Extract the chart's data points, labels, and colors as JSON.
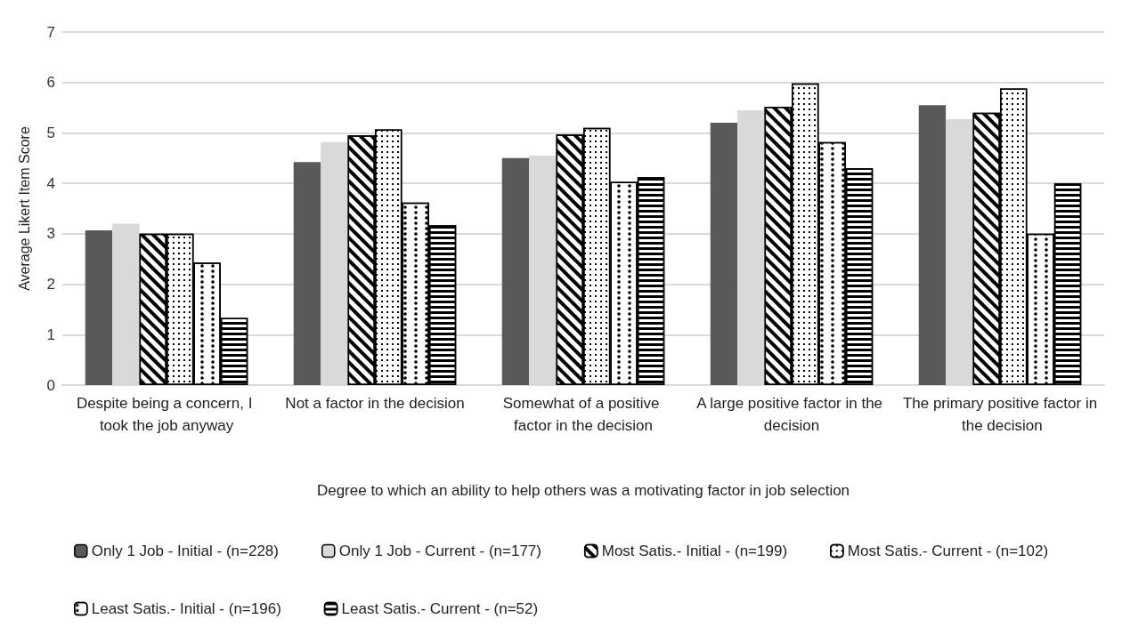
{
  "chart_data": {
    "type": "bar",
    "xlabel": "Degree to which an ability to help others was a motivating factor in job selection",
    "ylabel": "Average Likert Item Score",
    "categories": [
      "Despite being a concern, I took the job anyway",
      "Not a factor in the decision",
      "Somewhat of a positive factor in the decision",
      "A large positive factor in the decision",
      "The primary positive factor in the decision"
    ],
    "series": [
      {
        "name": "Only 1 Job - Initial - (n=228)",
        "color": "#595959",
        "values": [
          3.07,
          4.42,
          4.5,
          5.2,
          5.55
        ]
      },
      {
        "name": "Only 1 Job - Current - (n=177)",
        "color": "#d9d9d9",
        "values": [
          3.2,
          4.82,
          4.55,
          5.45,
          5.27
        ]
      },
      {
        "name": "Most Satis.- Initial - (n=199)",
        "color": "#ffffff",
        "values": [
          3.0,
          4.95,
          4.97,
          5.52,
          5.4
        ]
      },
      {
        "name": "Most Satis.- Current - (n=102)",
        "color": "#ffffff",
        "values": [
          3.0,
          5.07,
          5.1,
          5.98,
          5.88
        ]
      },
      {
        "name": "Least Satis.- Initial - (n=196)",
        "color": "#ffffff",
        "values": [
          2.43,
          3.62,
          4.03,
          4.82,
          3.0
        ]
      },
      {
        "name": "Least Satis.- Current - (n=52)",
        "color": "#ffffff",
        "values": [
          1.33,
          3.17,
          4.12,
          4.3,
          4.0
        ]
      }
    ],
    "ylim": [
      0,
      7
    ],
    "yticks": [
      0,
      1,
      2,
      3,
      4,
      5,
      6,
      7
    ],
    "grid": "y",
    "legend": "bottom"
  }
}
